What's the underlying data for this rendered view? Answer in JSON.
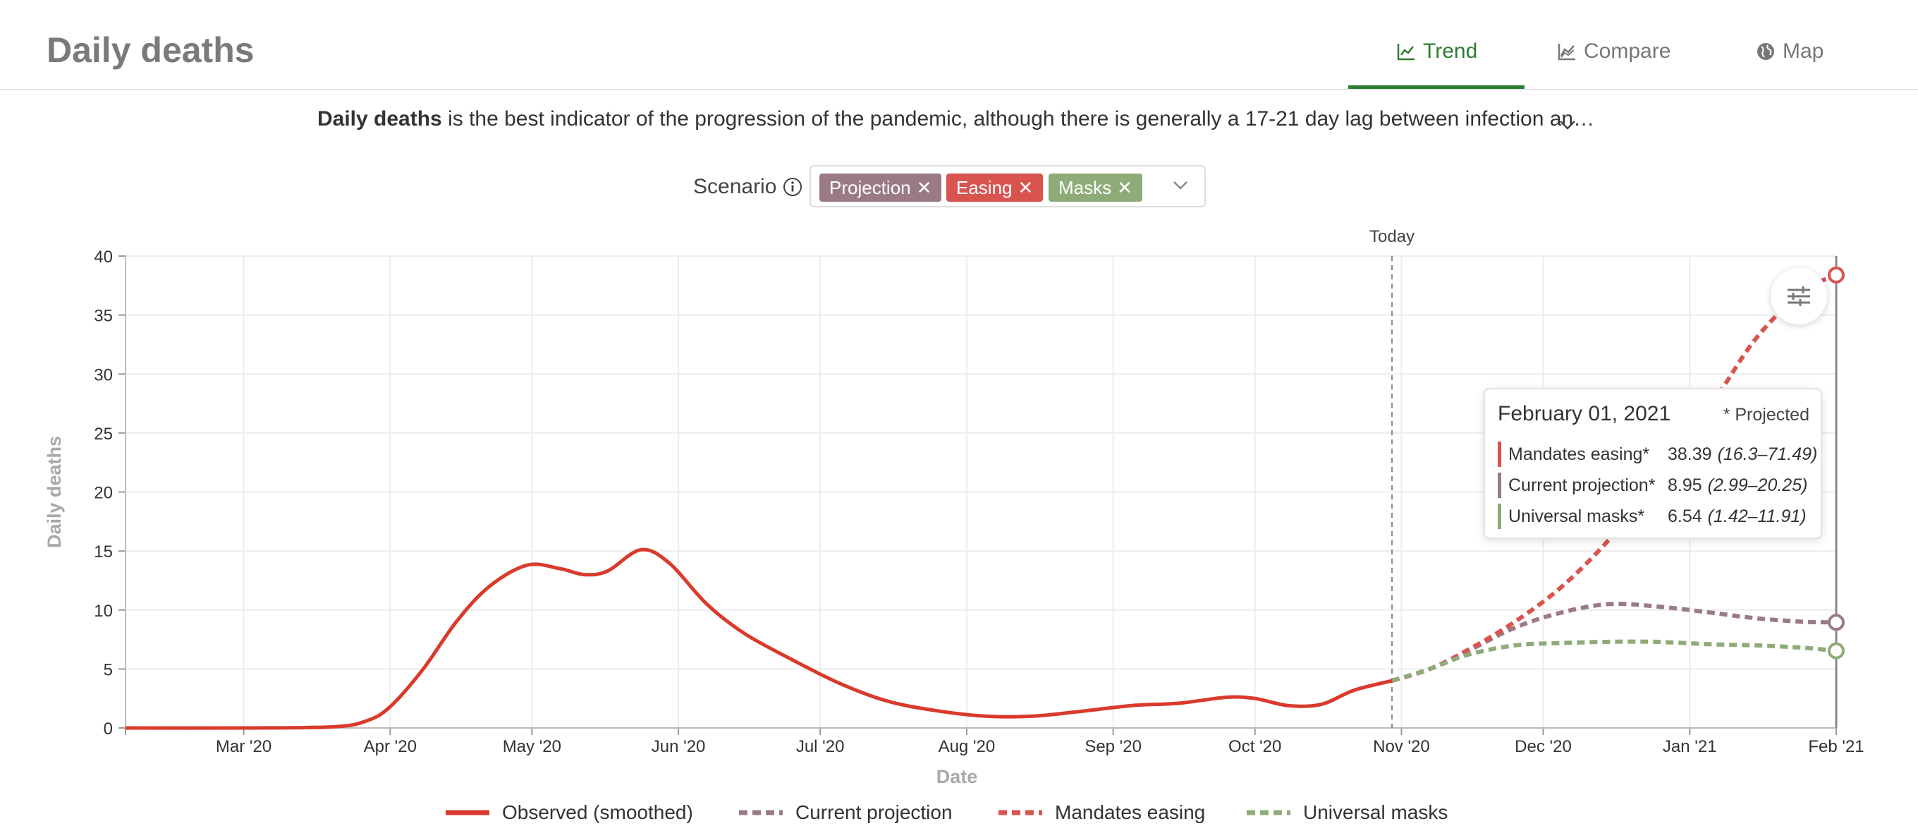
{
  "header": {
    "title": "Daily deaths",
    "tabs": [
      {
        "label": "Trend",
        "icon": "line-chart-icon",
        "active": true
      },
      {
        "label": "Compare",
        "icon": "area-chart-icon",
        "active": false
      },
      {
        "label": "Map",
        "icon": "globe-icon",
        "active": false
      }
    ]
  },
  "description": {
    "bold": "Daily deaths",
    "text": " is the best indicator of the progression of the pandemic, although there is generally a 17-21 day lag between infection an…"
  },
  "scenario": {
    "label": "Scenario",
    "chips": [
      {
        "label": "Projection",
        "color": "#9a7b83"
      },
      {
        "label": "Easing",
        "color": "#d9534f"
      },
      {
        "label": "Masks",
        "color": "#8fab78"
      }
    ]
  },
  "tooltip": {
    "date": "February 01, 2021",
    "note": "* Projected",
    "rows": [
      {
        "name": "Mandates easing*",
        "value": "38.39",
        "range": "(16.3–71.49)",
        "color": "#d9534f"
      },
      {
        "name": "Current projection*",
        "value": "8.95",
        "range": "(2.99–20.25)",
        "color": "#9a7b83"
      },
      {
        "name": "Universal masks*",
        "value": "6.54",
        "range": "(1.42–11.91)",
        "color": "#8fab78"
      }
    ]
  },
  "chart_data": {
    "type": "line",
    "xlabel": "Date",
    "ylabel": "Daily deaths",
    "ylim": [
      0,
      40
    ],
    "xlim": [
      "2020-02-05",
      "2021-02-01"
    ],
    "yticks": [
      0,
      5,
      10,
      15,
      20,
      25,
      30,
      35,
      40
    ],
    "xticks": [
      {
        "date": "2020-03-01",
        "label": "Mar '20"
      },
      {
        "date": "2020-04-01",
        "label": "Apr '20"
      },
      {
        "date": "2020-05-01",
        "label": "May '20"
      },
      {
        "date": "2020-06-01",
        "label": "Jun '20"
      },
      {
        "date": "2020-07-01",
        "label": "Jul '20"
      },
      {
        "date": "2020-08-01",
        "label": "Aug '20"
      },
      {
        "date": "2020-09-01",
        "label": "Sep '20"
      },
      {
        "date": "2020-10-01",
        "label": "Oct '20"
      },
      {
        "date": "2020-11-01",
        "label": "Nov '20"
      },
      {
        "date": "2020-12-01",
        "label": "Dec '20"
      },
      {
        "date": "2021-01-01",
        "label": "Jan '21"
      },
      {
        "date": "2021-02-01",
        "label": "Feb '21"
      }
    ],
    "grid": true,
    "legend_position": "bottom",
    "today": {
      "date": "2020-10-30",
      "label": "Today"
    },
    "series": [
      {
        "name": "Observed (smoothed)",
        "color": "#d93a2b",
        "dashed": false,
        "points": [
          [
            "2020-02-05",
            0
          ],
          [
            "2020-03-01",
            0
          ],
          [
            "2020-03-20",
            0.1
          ],
          [
            "2020-03-27",
            0.6
          ],
          [
            "2020-04-01",
            1.8
          ],
          [
            "2020-04-08",
            5
          ],
          [
            "2020-04-15",
            9
          ],
          [
            "2020-04-22",
            12
          ],
          [
            "2020-04-30",
            13.8
          ],
          [
            "2020-05-07",
            13.5
          ],
          [
            "2020-05-12",
            13
          ],
          [
            "2020-05-17",
            13.3
          ],
          [
            "2020-05-24",
            15.1
          ],
          [
            "2020-05-30",
            14
          ],
          [
            "2020-06-07",
            10.5
          ],
          [
            "2020-06-15",
            8
          ],
          [
            "2020-06-25",
            5.8
          ],
          [
            "2020-07-05",
            3.8
          ],
          [
            "2020-07-15",
            2.3
          ],
          [
            "2020-07-25",
            1.5
          ],
          [
            "2020-08-05",
            1
          ],
          [
            "2020-08-15",
            1
          ],
          [
            "2020-08-25",
            1.4
          ],
          [
            "2020-09-05",
            1.9
          ],
          [
            "2020-09-15",
            2.1
          ],
          [
            "2020-09-25",
            2.6
          ],
          [
            "2020-10-01",
            2.5
          ],
          [
            "2020-10-08",
            1.9
          ],
          [
            "2020-10-15",
            2
          ],
          [
            "2020-10-22",
            3.2
          ],
          [
            "2020-10-30",
            4
          ]
        ]
      },
      {
        "name": "Current projection",
        "color": "#9a7b83",
        "dashed": true,
        "points": [
          [
            "2020-10-30",
            4
          ],
          [
            "2020-11-07",
            5
          ],
          [
            "2020-11-15",
            6.5
          ],
          [
            "2020-11-25",
            8.5
          ],
          [
            "2020-12-05",
            9.8
          ],
          [
            "2020-12-15",
            10.5
          ],
          [
            "2020-12-25",
            10.3
          ],
          [
            "2021-01-05",
            9.8
          ],
          [
            "2021-01-15",
            9.3
          ],
          [
            "2021-01-25",
            9
          ],
          [
            "2021-02-01",
            8.95
          ]
        ]
      },
      {
        "name": "Mandates easing",
        "color": "#d9534f",
        "dashed": true,
        "points": [
          [
            "2020-10-30",
            4
          ],
          [
            "2020-11-07",
            5
          ],
          [
            "2020-11-15",
            6.6
          ],
          [
            "2020-11-25",
            9
          ],
          [
            "2020-12-05",
            12
          ],
          [
            "2020-12-15",
            16
          ],
          [
            "2020-12-25",
            21
          ],
          [
            "2021-01-05",
            27
          ],
          [
            "2021-01-15",
            33
          ],
          [
            "2021-01-25",
            37
          ],
          [
            "2021-02-01",
            38.39
          ]
        ]
      },
      {
        "name": "Universal masks",
        "color": "#8fab78",
        "dashed": true,
        "points": [
          [
            "2020-10-30",
            4
          ],
          [
            "2020-11-07",
            5
          ],
          [
            "2020-11-15",
            6.2
          ],
          [
            "2020-11-25",
            7
          ],
          [
            "2020-12-05",
            7.2
          ],
          [
            "2020-12-15",
            7.3
          ],
          [
            "2020-12-25",
            7.3
          ],
          [
            "2021-01-05",
            7.1
          ],
          [
            "2021-01-15",
            7
          ],
          [
            "2021-01-25",
            6.8
          ],
          [
            "2021-02-01",
            6.54
          ]
        ]
      }
    ]
  }
}
